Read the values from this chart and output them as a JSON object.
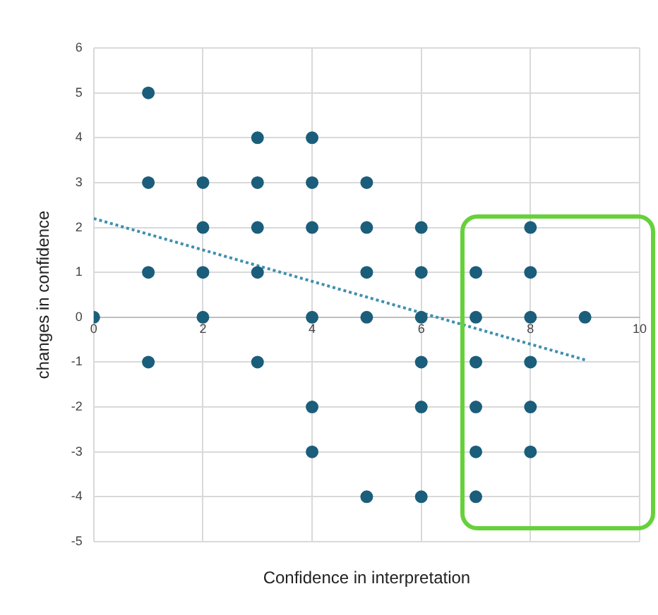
{
  "chart_data": {
    "type": "scatter",
    "xlabel": "Confidence in interpretation",
    "ylabel": "changes in confidence",
    "xlim": [
      0,
      10
    ],
    "xticks": [
      0,
      2,
      4,
      6,
      8,
      10
    ],
    "ylim": [
      -5,
      6
    ],
    "yticks": [
      -5,
      -4,
      -3,
      -2,
      -1,
      0,
      1,
      2,
      3,
      4,
      5,
      6
    ],
    "grid": true,
    "series": [
      {
        "marker": "circle",
        "color": "#1b5e7b",
        "x": [
          0,
          1,
          1,
          1,
          1,
          2,
          2,
          2,
          2,
          3,
          3,
          3,
          3,
          3,
          4,
          4,
          4,
          4,
          4,
          4,
          5,
          5,
          5,
          5,
          5,
          6,
          6,
          6,
          6,
          6,
          6,
          7,
          7,
          7,
          7,
          7,
          7,
          8,
          8,
          8,
          8,
          8,
          8,
          9
        ],
        "values": [
          0,
          5,
          3,
          1,
          -1,
          3,
          2,
          1,
          0,
          4,
          3,
          2,
          1,
          -1,
          4,
          3,
          2,
          0,
          -2,
          -3,
          3,
          2,
          1,
          0,
          -4,
          2,
          1,
          0,
          -1,
          -2,
          -4,
          1,
          0,
          -1,
          -2,
          -3,
          -4,
          2,
          1,
          0,
          -1,
          -2,
          -3,
          0
        ]
      },
      {
        "type": "line",
        "marker": "none",
        "color": "#3f8fb0",
        "line_style": "dotted",
        "x": [
          0,
          9
        ],
        "values": [
          2.2,
          -0.95
        ]
      }
    ]
  }
}
